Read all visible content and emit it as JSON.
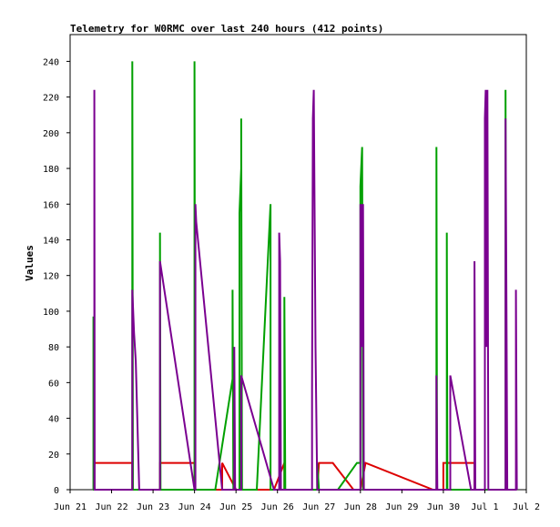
{
  "chart_data": {
    "type": "line",
    "title": "Telemetry for W0RMC over last 240 hours (412 points)",
    "xlabel": "",
    "ylabel": "Values",
    "xlim": [
      "2024-06-21",
      "2024-07-02"
    ],
    "ylim": [
      0,
      255
    ],
    "x_ticks": [
      "Jun 21",
      "Jun 22",
      "Jun 23",
      "Jun 24",
      "Jun 25",
      "Jun 26",
      "Jun 27",
      "Jun 28",
      "Jun 29",
      "Jun 30",
      "Jul 1",
      "Jul 2"
    ],
    "y_ticks": [
      0,
      20,
      40,
      60,
      80,
      100,
      120,
      140,
      160,
      180,
      200,
      220,
      240
    ],
    "grid": false,
    "legend": "none",
    "colors": {
      "red_series": "#dd0000",
      "green_series": "#00a000",
      "purple_series": "#7a0090",
      "axis": "#000000",
      "background": "#ffffff"
    },
    "series": [
      {
        "color": "#dd0000",
        "points": [
          [
            "2024-06-21 14:00",
            0
          ],
          [
            "2024-06-21 14:00",
            15
          ],
          [
            "2024-06-22 12:00",
            15
          ],
          [
            "2024-06-22 12:00",
            0
          ],
          [
            "2024-06-23 04:00",
            0
          ],
          [
            "2024-06-23 04:00",
            15
          ],
          [
            "2024-06-24 00:00",
            15
          ],
          [
            "2024-06-24 00:00",
            0
          ],
          [
            "2024-06-24 16:00",
            0
          ],
          [
            "2024-06-24 16:00",
            15
          ],
          [
            "2024-06-25 00:00",
            0
          ],
          [
            "2024-06-25 22:00",
            0
          ],
          [
            "2024-06-26 04:00",
            15
          ],
          [
            "2024-06-26 04:00",
            0
          ],
          [
            "2024-06-26 23:00",
            0
          ],
          [
            "2024-06-27 00:00",
            15
          ],
          [
            "2024-06-27 08:00",
            15
          ],
          [
            "2024-06-27 20:00",
            0
          ],
          [
            "2024-06-28 00:00",
            0
          ],
          [
            "2024-06-28 03:00",
            15
          ],
          [
            "2024-06-29 18:00",
            0
          ],
          [
            "2024-06-30 00:00",
            0
          ],
          [
            "2024-06-30 00:00",
            15
          ],
          [
            "2024-06-30 18:00",
            15
          ],
          [
            "2024-06-30 18:00",
            0
          ]
        ]
      },
      {
        "color": "#00a000",
        "points": [
          [
            "2024-06-21 13:30",
            0
          ],
          [
            "2024-06-21 13:30",
            97
          ],
          [
            "2024-06-21 13:45",
            0
          ],
          [
            "2024-06-22 12:00",
            0
          ],
          [
            "2024-06-22 12:00",
            240
          ],
          [
            "2024-06-22 12:20",
            0
          ],
          [
            "2024-06-23 04:00",
            0
          ],
          [
            "2024-06-23 04:00",
            144
          ],
          [
            "2024-06-23 04:20",
            0
          ],
          [
            "2024-06-24 00:00",
            0
          ],
          [
            "2024-06-24 00:00",
            240
          ],
          [
            "2024-06-24 00:20",
            0
          ],
          [
            "2024-06-24 12:00",
            0
          ],
          [
            "2024-06-24 22:00",
            62
          ],
          [
            "2024-06-24 22:00",
            112
          ],
          [
            "2024-06-24 22:30",
            0
          ],
          [
            "2024-06-25 02:00",
            0
          ],
          [
            "2024-06-25 02:00",
            155
          ],
          [
            "2024-06-25 03:00",
            180
          ],
          [
            "2024-06-25 03:00",
            208
          ],
          [
            "2024-06-25 03:30",
            0
          ],
          [
            "2024-06-25 12:00",
            0
          ],
          [
            "2024-06-25 20:00",
            160
          ],
          [
            "2024-06-25 20:00",
            0
          ],
          [
            "2024-06-26 04:00",
            0
          ],
          [
            "2024-06-26 04:00",
            108
          ],
          [
            "2024-06-26 04:30",
            0
          ],
          [
            "2024-06-26 23:00",
            0
          ],
          [
            "2024-06-26 23:00",
            15
          ],
          [
            "2024-06-27 00:00",
            0
          ],
          [
            "2024-06-27 11:00",
            0
          ],
          [
            "2024-06-27 22:00",
            15
          ],
          [
            "2024-06-28 00:00",
            15
          ],
          [
            "2024-06-28 00:00",
            170
          ],
          [
            "2024-06-28 01:00",
            192
          ],
          [
            "2024-06-28 01:30",
            0
          ],
          [
            "2024-06-29 20:00",
            0
          ],
          [
            "2024-06-29 20:00",
            192
          ],
          [
            "2024-06-29 20:20",
            0
          ],
          [
            "2024-06-30 02:00",
            0
          ],
          [
            "2024-06-30 02:00",
            144
          ],
          [
            "2024-06-30 02:20",
            0
          ],
          [
            "2024-07-01 12:00",
            0
          ],
          [
            "2024-07-01 12:00",
            224
          ],
          [
            "2024-07-01 12:20",
            0
          ]
        ]
      },
      {
        "color": "#7a0090",
        "points": [
          [
            "2024-06-21 14:00",
            0
          ],
          [
            "2024-06-21 14:00",
            224
          ],
          [
            "2024-06-21 14:15",
            0
          ],
          [
            "2024-06-22 12:00",
            0
          ],
          [
            "2024-06-22 12:00",
            112
          ],
          [
            "2024-06-22 13:00",
            88
          ],
          [
            "2024-06-22 14:00",
            72
          ],
          [
            "2024-06-22 16:00",
            0
          ],
          [
            "2024-06-23 04:00",
            0
          ],
          [
            "2024-06-23 04:00",
            128
          ],
          [
            "2024-06-24 00:00",
            0
          ],
          [
            "2024-06-24 00:30",
            0
          ],
          [
            "2024-06-24 00:30",
            160
          ],
          [
            "2024-06-24 01:00",
            150
          ],
          [
            "2024-06-24 16:00",
            0
          ],
          [
            "2024-06-24 23:00",
            0
          ],
          [
            "2024-06-24 23:00",
            80
          ],
          [
            "2024-06-24 23:30",
            0
          ],
          [
            "2024-06-25 03:00",
            0
          ],
          [
            "2024-06-25 03:00",
            64
          ],
          [
            "2024-06-25 22:00",
            0
          ],
          [
            "2024-06-26 01:00",
            0
          ],
          [
            "2024-06-26 01:00",
            144
          ],
          [
            "2024-06-26 01:30",
            128
          ],
          [
            "2024-06-26 02:00",
            0
          ],
          [
            "2024-06-26 20:00",
            0
          ],
          [
            "2024-06-26 20:00",
            56
          ],
          [
            "2024-06-26 20:30",
            208
          ],
          [
            "2024-06-26 21:00",
            224
          ],
          [
            "2024-06-26 22:00",
            80
          ],
          [
            "2024-06-26 23:00",
            0
          ],
          [
            "2024-06-28 00:00",
            0
          ],
          [
            "2024-06-28 00:00",
            160
          ],
          [
            "2024-06-28 00:20",
            128
          ],
          [
            "2024-06-28 00:40",
            160
          ],
          [
            "2024-06-28 01:00",
            80
          ],
          [
            "2024-06-28 01:30",
            160
          ],
          [
            "2024-06-28 02:00",
            0
          ],
          [
            "2024-06-29 20:00",
            0
          ],
          [
            "2024-06-29 20:00",
            64
          ],
          [
            "2024-06-29 20:30",
            0
          ],
          [
            "2024-06-30 04:00",
            0
          ],
          [
            "2024-06-30 04:00",
            64
          ],
          [
            "2024-06-30 16:00",
            0
          ],
          [
            "2024-06-30 18:00",
            0
          ],
          [
            "2024-06-30 18:00",
            128
          ],
          [
            "2024-06-30 18:30",
            0
          ],
          [
            "2024-07-01 00:00",
            0
          ],
          [
            "2024-07-01 00:00",
            208
          ],
          [
            "2024-07-01 00:30",
            224
          ],
          [
            "2024-07-01 01:00",
            80
          ],
          [
            "2024-07-01 01:30",
            224
          ],
          [
            "2024-07-01 02:00",
            0
          ],
          [
            "2024-07-01 12:00",
            0
          ],
          [
            "2024-07-01 12:00",
            208
          ],
          [
            "2024-07-01 12:30",
            104
          ],
          [
            "2024-07-01 13:00",
            0
          ],
          [
            "2024-07-01 18:00",
            0
          ],
          [
            "2024-07-01 18:00",
            112
          ],
          [
            "2024-07-01 18:30",
            0
          ]
        ]
      }
    ]
  }
}
